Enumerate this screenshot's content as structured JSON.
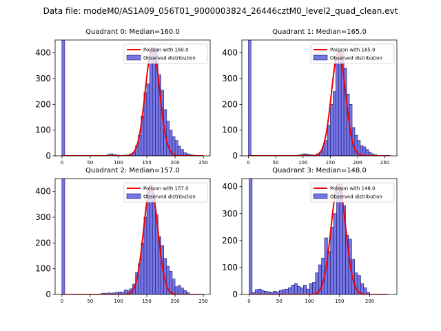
{
  "figure_title": "Data file: modeM0/AS1A09_056T01_9000003824_26446cztM0_level2_quad_clean.evt",
  "colors": {
    "bars": "#7575e6",
    "bar_edge": "#1a1a66",
    "curve": "#ee0000"
  },
  "chart_data": [
    {
      "type": "histogram",
      "title": "Quadrant 0: Median=160.0",
      "xlim": [
        -12,
        262
      ],
      "ylim": [
        0,
        450
      ],
      "xticks": [
        0,
        50,
        100,
        150,
        200,
        250
      ],
      "yticks": [
        0,
        100,
        200,
        300,
        400
      ],
      "bin_width": 5,
      "bins": [
        [
          0,
          2000
        ],
        [
          80,
          6
        ],
        [
          85,
          8
        ],
        [
          90,
          5
        ],
        [
          95,
          3
        ],
        [
          100,
          2
        ],
        [
          105,
          2
        ],
        [
          110,
          3
        ],
        [
          115,
          4
        ],
        [
          120,
          8
        ],
        [
          125,
          15
        ],
        [
          130,
          40
        ],
        [
          135,
          80
        ],
        [
          140,
          155
        ],
        [
          145,
          245
        ],
        [
          150,
          280
        ],
        [
          155,
          410
        ],
        [
          160,
          420
        ],
        [
          165,
          415
        ],
        [
          170,
          315
        ],
        [
          175,
          255
        ],
        [
          180,
          180
        ],
        [
          185,
          135
        ],
        [
          190,
          100
        ],
        [
          195,
          75
        ],
        [
          200,
          60
        ],
        [
          205,
          38
        ],
        [
          210,
          25
        ],
        [
          215,
          12
        ],
        [
          220,
          8
        ],
        [
          225,
          5
        ],
        [
          230,
          3
        ]
      ],
      "curve": {
        "label": "Poisson with 160.0",
        "mean": 160.0,
        "peak": 420,
        "x_range": [
          0,
          250
        ]
      },
      "legend": {
        "curve": "Poisson with 160.0",
        "bars": "Observed distribution"
      }
    },
    {
      "type": "histogram",
      "title": "Quadrant 1: Median=165.0",
      "xlim": [
        -12,
        272
      ],
      "ylim": [
        0,
        450
      ],
      "xticks": [
        0,
        50,
        100,
        150,
        200,
        250
      ],
      "yticks": [
        0,
        100,
        200,
        300,
        400
      ],
      "bin_width": 5,
      "bins": [
        [
          0,
          2000
        ],
        [
          90,
          3
        ],
        [
          95,
          5
        ],
        [
          100,
          8
        ],
        [
          105,
          7
        ],
        [
          110,
          5
        ],
        [
          115,
          4
        ],
        [
          120,
          3
        ],
        [
          125,
          8
        ],
        [
          130,
          15
        ],
        [
          135,
          35
        ],
        [
          140,
          60
        ],
        [
          145,
          120
        ],
        [
          150,
          200
        ],
        [
          155,
          250
        ],
        [
          160,
          380
        ],
        [
          165,
          410
        ],
        [
          170,
          400
        ],
        [
          175,
          340
        ],
        [
          180,
          240
        ],
        [
          185,
          200
        ],
        [
          190,
          110
        ],
        [
          195,
          80
        ],
        [
          200,
          60
        ],
        [
          205,
          40
        ],
        [
          210,
          35
        ],
        [
          215,
          25
        ],
        [
          220,
          15
        ],
        [
          225,
          8
        ],
        [
          230,
          5
        ]
      ],
      "curve": {
        "label": "Poisson with 165.0",
        "mean": 165.0,
        "peak": 405,
        "x_range": [
          0,
          260
        ]
      },
      "legend": {
        "curve": "Poisson with 165.0",
        "bars": "Observed distribution"
      }
    },
    {
      "type": "histogram",
      "title": "Quadrant 2: Median=157.0",
      "xlim": [
        -12,
        262
      ],
      "ylim": [
        0,
        450
      ],
      "xticks": [
        0,
        50,
        100,
        150,
        200,
        250
      ],
      "yticks": [
        0,
        100,
        200,
        300,
        400
      ],
      "bin_width": 5,
      "bins": [
        [
          0,
          2000
        ],
        [
          70,
          5
        ],
        [
          75,
          4
        ],
        [
          80,
          6
        ],
        [
          85,
          5
        ],
        [
          90,
          6
        ],
        [
          95,
          8
        ],
        [
          100,
          10
        ],
        [
          105,
          8
        ],
        [
          110,
          18
        ],
        [
          115,
          15
        ],
        [
          120,
          22
        ],
        [
          125,
          40
        ],
        [
          130,
          85
        ],
        [
          135,
          120
        ],
        [
          140,
          200
        ],
        [
          145,
          300
        ],
        [
          150,
          400
        ],
        [
          155,
          425
        ],
        [
          160,
          390
        ],
        [
          165,
          310
        ],
        [
          170,
          225
        ],
        [
          175,
          190
        ],
        [
          180,
          140
        ],
        [
          185,
          110
        ],
        [
          190,
          90
        ],
        [
          195,
          60
        ],
        [
          200,
          30
        ],
        [
          205,
          35
        ],
        [
          210,
          25
        ],
        [
          215,
          15
        ],
        [
          220,
          8
        ]
      ],
      "curve": {
        "label": "Poisson with 157.0",
        "mean": 157.0,
        "peak": 420,
        "x_range": [
          0,
          250
        ]
      },
      "legend": {
        "curve": "Poisson with 157.0",
        "bars": "Observed distribution"
      }
    },
    {
      "type": "histogram",
      "title": "Quadrant 3: Median=148.0",
      "xlim": [
        -12,
        245
      ],
      "ylim": [
        0,
        430
      ],
      "xticks": [
        0,
        50,
        100,
        150,
        200
      ],
      "yticks": [
        0,
        100,
        200,
        300,
        400
      ],
      "bin_width": 5,
      "bins": [
        [
          0,
          2000
        ],
        [
          5,
          8
        ],
        [
          10,
          18
        ],
        [
          15,
          20
        ],
        [
          20,
          15
        ],
        [
          25,
          12
        ],
        [
          30,
          10
        ],
        [
          35,
          8
        ],
        [
          40,
          12
        ],
        [
          45,
          10
        ],
        [
          50,
          15
        ],
        [
          55,
          18
        ],
        [
          60,
          20
        ],
        [
          65,
          25
        ],
        [
          70,
          35
        ],
        [
          75,
          40
        ],
        [
          80,
          30
        ],
        [
          85,
          25
        ],
        [
          90,
          35
        ],
        [
          95,
          20
        ],
        [
          100,
          40
        ],
        [
          105,
          45
        ],
        [
          110,
          80
        ],
        [
          115,
          110
        ],
        [
          120,
          135
        ],
        [
          125,
          210
        ],
        [
          130,
          160
        ],
        [
          135,
          250
        ],
        [
          140,
          300
        ],
        [
          145,
          400
        ],
        [
          150,
          410
        ],
        [
          155,
          330
        ],
        [
          160,
          220
        ],
        [
          165,
          205
        ],
        [
          170,
          130
        ],
        [
          175,
          80
        ],
        [
          180,
          70
        ],
        [
          185,
          40
        ],
        [
          190,
          25
        ],
        [
          195,
          8
        ]
      ],
      "curve": {
        "label": "Poisson with 148.0",
        "mean": 148.0,
        "peak": 410,
        "x_range": [
          0,
          230
        ]
      },
      "legend": {
        "curve": "Poisson with 148.0",
        "bars": "Observed distribution"
      }
    }
  ]
}
